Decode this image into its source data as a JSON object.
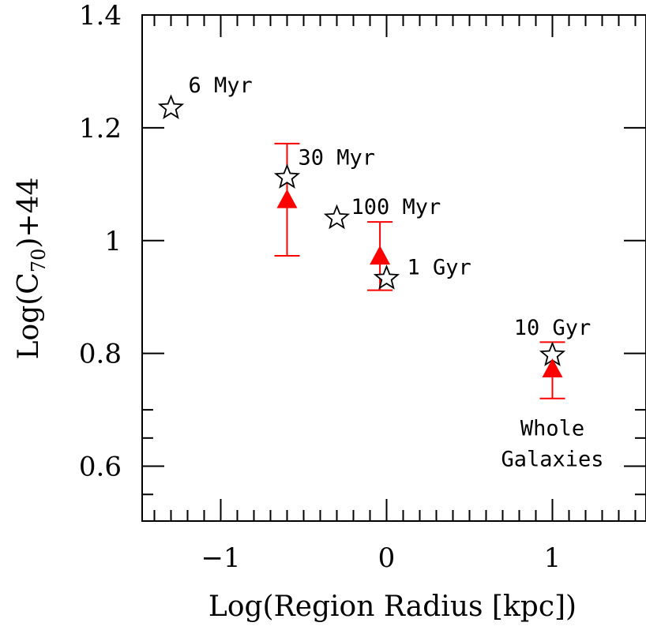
{
  "chart_data": {
    "type": "scatter",
    "xlabel": "Log(Region Radius [kpc])",
    "ylabel": "Log(C70)+44",
    "ylabel_parts": {
      "pre": "Log(C",
      "sub": "70",
      "post": ")+44"
    },
    "xlim": [
      -1.5,
      1.55
    ],
    "ylim": [
      0.5,
      1.4
    ],
    "x_ticks": [
      -1,
      0,
      1
    ],
    "x_tick_labels": [
      "−1",
      "0",
      "1"
    ],
    "y_ticks": [
      0.6,
      0.8,
      1.0,
      1.2,
      1.4
    ],
    "y_tick_labels": [
      "0.6",
      "0.8",
      "1",
      "1.2",
      "1.4"
    ],
    "grid": false,
    "series": [
      {
        "marker": "open-star",
        "color": "#000000",
        "points": [
          {
            "x": -1.3,
            "y": 1.235,
            "label": "6 Myr"
          },
          {
            "x": -0.6,
            "y": 1.112,
            "label": "30 Myr"
          },
          {
            "x": -0.3,
            "y": 1.04,
            "label": "100 Myr"
          },
          {
            "x": 0.0,
            "y": 0.933,
            "label": "1 Gyr"
          },
          {
            "x": 1.0,
            "y": 0.797,
            "label": "10 Gyr"
          }
        ]
      },
      {
        "marker": "filled-triangle",
        "color": "#ff0000",
        "points": [
          {
            "x": -0.6,
            "y": 1.073,
            "yerr_low": 0.973,
            "yerr_high": 1.172
          },
          {
            "x": -0.04,
            "y": 0.973,
            "yerr_low": 0.912,
            "yerr_high": 1.033
          },
          {
            "x": 1.0,
            "y": 0.773,
            "yerr_low": 0.72,
            "yerr_high": 0.82
          }
        ]
      }
    ],
    "annotations": [
      {
        "text": "Whole",
        "x": 1.0,
        "y": 0.655
      },
      {
        "text": "Galaxies",
        "x": 1.0,
        "y": 0.6
      }
    ]
  }
}
